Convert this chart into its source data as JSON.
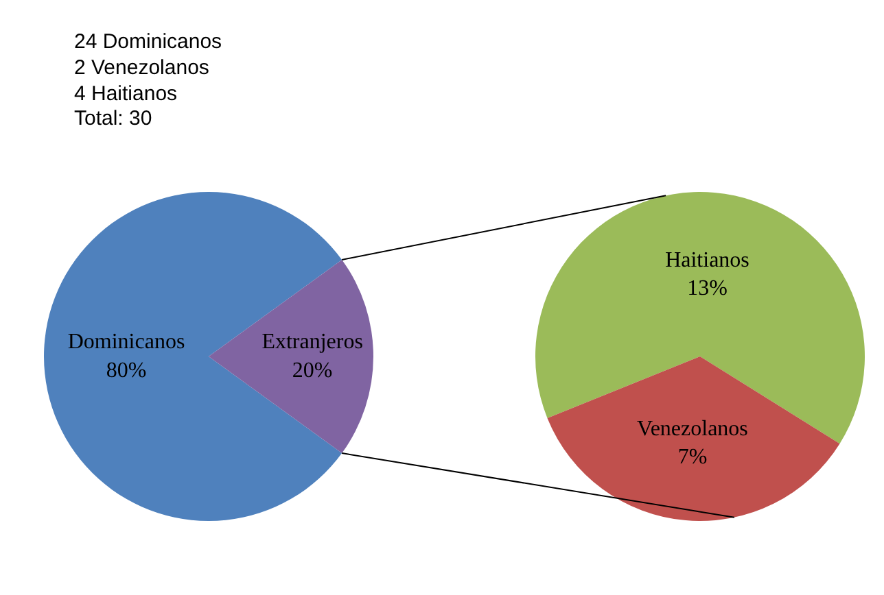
{
  "chart_data": [
    {
      "type": "pie",
      "categories": [
        "Dominicanos",
        "Extranjeros"
      ],
      "values": [
        80,
        20
      ],
      "value_labels": [
        "80%",
        "20%"
      ],
      "colors": [
        "#4f81bd",
        "#8064a2"
      ],
      "annotations": [
        "24 Dominicanos",
        "2 Venezolanos",
        "4 Haitianos",
        "Total: 30"
      ]
    },
    {
      "type": "pie",
      "categories": [
        "Haitianos",
        "Venezolanos"
      ],
      "values": [
        13,
        7
      ],
      "value_labels": [
        "13%",
        "7%"
      ],
      "colors": [
        "#9bbb59",
        "#c0504d"
      ]
    }
  ]
}
